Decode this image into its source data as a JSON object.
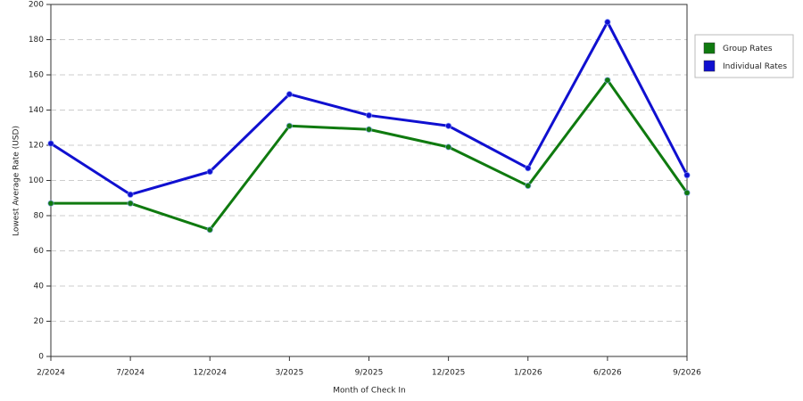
{
  "chart_data": {
    "type": "line",
    "x_label": "Month of Check In",
    "y_label": "Lowest Average Rate (USD)",
    "categories": [
      "2/2024",
      "7/2024",
      "12/2024",
      "3/2025",
      "9/2025",
      "12/2025",
      "1/2026",
      "6/2026",
      "9/2026"
    ],
    "series": [
      {
        "name": "Group Rates",
        "color": "#0f7a0f",
        "values": [
          87,
          87,
          72,
          131,
          129,
          119,
          97,
          157,
          93
        ]
      },
      {
        "name": "Individual Rates",
        "color": "#1010d0",
        "values": [
          121,
          92,
          105,
          149,
          137,
          131,
          107,
          190,
          103
        ]
      }
    ],
    "ylim": [
      0,
      200
    ],
    "yticks": [
      0,
      20,
      40,
      60,
      80,
      100,
      120,
      140,
      160,
      180,
      200
    ],
    "grid": true,
    "legend": "right"
  }
}
